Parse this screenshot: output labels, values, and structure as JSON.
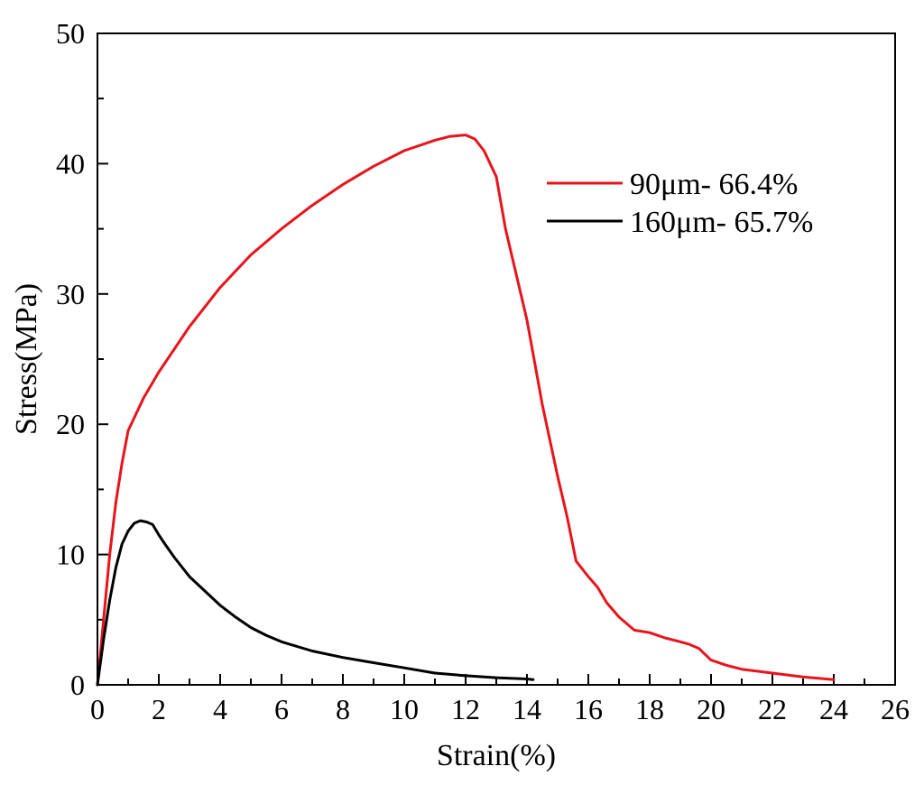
{
  "chart_data": {
    "type": "line",
    "title": "",
    "xlabel": "Strain(%)",
    "ylabel": "Stress(MPa)",
    "xlim": [
      0,
      26
    ],
    "ylim": [
      0,
      50
    ],
    "xticks": [
      0,
      2,
      4,
      6,
      8,
      10,
      12,
      14,
      16,
      18,
      20,
      22,
      24,
      26
    ],
    "yticks": [
      0,
      10,
      20,
      30,
      40,
      50
    ],
    "x_minor_step": 1,
    "y_minor_step": 5,
    "grid": false,
    "legend_position": "top-right",
    "series": [
      {
        "name": "90μm- 66.4%",
        "color": "#e8141b",
        "x": [
          0,
          0.2,
          0.4,
          0.6,
          0.8,
          1.0,
          1.5,
          2.0,
          3.0,
          4.0,
          5.0,
          6.0,
          7.0,
          8.0,
          9.0,
          10.0,
          11.0,
          11.5,
          12.0,
          12.3,
          12.6,
          13.0,
          13.3,
          13.6,
          14.0,
          14.5,
          15.0,
          15.3,
          15.6,
          16.0,
          16.3,
          16.6,
          17.0,
          17.5,
          18.0,
          18.5,
          19.0,
          19.3,
          19.6,
          20.0,
          20.5,
          21.0,
          22.0,
          23.0,
          24.0
        ],
        "y": [
          0,
          5,
          10,
          14,
          17,
          19.5,
          22,
          24,
          27.5,
          30.5,
          33,
          35,
          36.8,
          38.4,
          39.8,
          41,
          41.8,
          42.1,
          42.2,
          41.9,
          41,
          39,
          35,
          32,
          28,
          21.5,
          16,
          13,
          9.5,
          8.3,
          7.5,
          6.3,
          5.2,
          4.2,
          4.0,
          3.6,
          3.3,
          3.1,
          2.8,
          1.9,
          1.5,
          1.2,
          0.9,
          0.6,
          0.4
        ]
      },
      {
        "name": "160μm- 65.7%",
        "color": "#000000",
        "x": [
          0,
          0.2,
          0.4,
          0.6,
          0.8,
          1.0,
          1.2,
          1.4,
          1.6,
          1.8,
          2.0,
          2.2,
          2.5,
          3.0,
          3.5,
          4.0,
          4.5,
          5.0,
          5.5,
          6.0,
          7.0,
          8.0,
          9.0,
          10.0,
          11.0,
          12.0,
          13.0,
          14.0,
          14.2
        ],
        "y": [
          0,
          3.5,
          6.5,
          9,
          10.8,
          11.8,
          12.4,
          12.6,
          12.5,
          12.3,
          11.5,
          10.8,
          9.8,
          8.3,
          7.2,
          6.1,
          5.2,
          4.4,
          3.8,
          3.3,
          2.6,
          2.1,
          1.7,
          1.3,
          0.9,
          0.7,
          0.55,
          0.45,
          0.4
        ]
      }
    ]
  }
}
